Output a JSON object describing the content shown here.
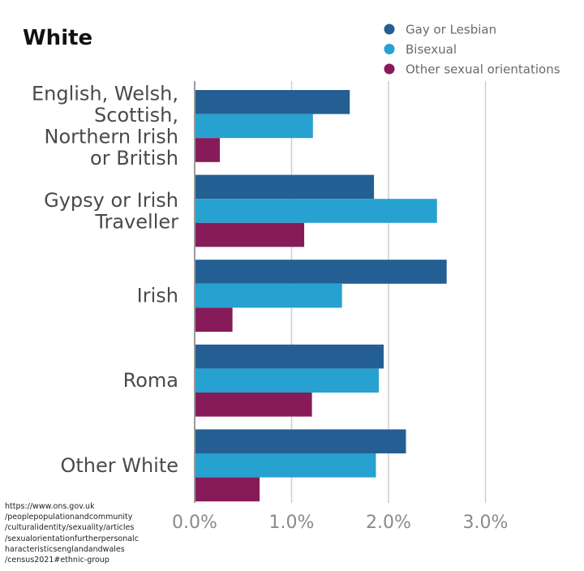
{
  "colors": {
    "gay_or_lesbian": "#235f93",
    "bisexual": "#27a1d0",
    "other": "#871b5a",
    "grid": "#cfcfcf",
    "axis": "#9a9a9a"
  },
  "source_text": "https://www.ons.gov.uk\n/peoplepopulationandcommunity\n/culturalidentity/sexuality/articles\n/sexualorientationfurtherpersonalc\nharacteristicsenglandandwales\n/census2021#ethnic-group",
  "chart_data": {
    "type": "bar",
    "orientation": "horizontal",
    "title": "White",
    "categories": [
      "English, Welsh, Scottish, Northern Irish or British",
      "Gypsy or Irish Traveller",
      "Irish",
      "Roma",
      "Other White"
    ],
    "category_label_lines": [
      [
        "English, Welsh,",
        "Scottish,",
        "Northern Irish",
        "or British"
      ],
      [
        "Gypsy or Irish",
        "Traveller"
      ],
      [
        "Irish"
      ],
      [
        "Roma"
      ],
      [
        "Other White"
      ]
    ],
    "series": [
      {
        "name": "Gay or Lesbian",
        "color_key": "gay_or_lesbian",
        "values": [
          1.6,
          1.85,
          2.6,
          1.95,
          2.18
        ]
      },
      {
        "name": "Bisexual",
        "color_key": "bisexual",
        "values": [
          1.22,
          2.5,
          1.52,
          1.9,
          1.87
        ]
      },
      {
        "name": "Other sexual orientations",
        "color_key": "other",
        "values": [
          0.26,
          1.13,
          0.39,
          1.21,
          0.67
        ]
      }
    ],
    "xlim": [
      0,
      3.0
    ],
    "xticks": [
      0,
      1,
      2,
      3
    ],
    "xtick_labels": [
      "0.0%",
      "1.0%",
      "2.0%",
      "3.0%"
    ],
    "xlabel": "",
    "ylabel": "",
    "grid": true,
    "legend_position": "top-right"
  }
}
